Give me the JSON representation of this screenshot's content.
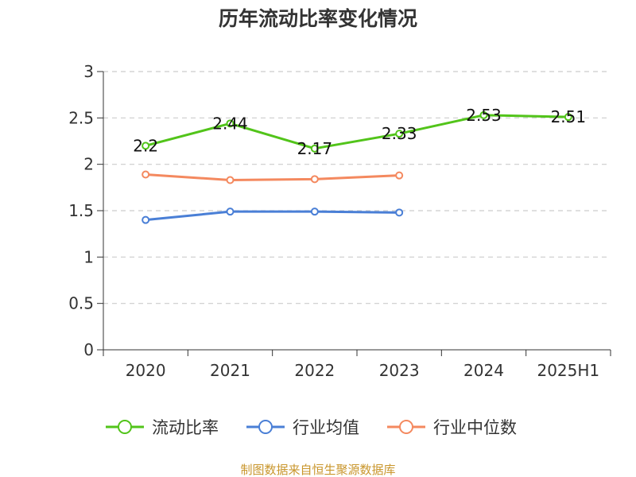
{
  "chart_data": {
    "type": "line",
    "title": "历年流动比率变化情况",
    "categories": [
      "2020",
      "2021",
      "2022",
      "2023",
      "2024",
      "2025H1"
    ],
    "ylim": [
      0,
      3
    ],
    "yticks": [
      "0",
      "0.5",
      "1",
      "1.5",
      "2",
      "2.5",
      "3"
    ],
    "grid": true,
    "legend_position": "bottom",
    "series": [
      {
        "name": "流动比率",
        "color": "#52c41a",
        "values": [
          2.2,
          2.44,
          2.17,
          2.33,
          2.53,
          2.51
        ],
        "labels": [
          "2.2",
          "2.44",
          "2.17",
          "2.33",
          "2.53",
          "2.51"
        ]
      },
      {
        "name": "行业均值",
        "color": "#4a7fd6",
        "values": [
          1.4,
          1.49,
          1.49,
          1.48,
          null,
          null
        ],
        "labels": []
      },
      {
        "name": "行业中位数",
        "color": "#f4895f",
        "values": [
          1.89,
          1.83,
          1.84,
          1.88,
          null,
          null
        ],
        "labels": []
      }
    ]
  },
  "source": "制图数据来自恒生聚源数据库"
}
